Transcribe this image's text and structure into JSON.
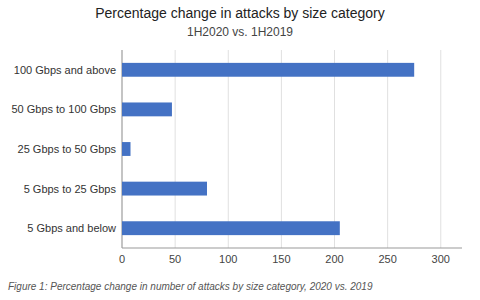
{
  "chart_data": {
    "type": "bar",
    "orientation": "horizontal",
    "title": "Percentage change in attacks by size category",
    "subtitle": "1H2020 vs. 1H2019",
    "caption": "Figure 1: Percentage change in number of attacks by size category, 2020 vs. 2019",
    "categories": [
      "5 Gbps and below",
      "5 Gbps to 25 Gbps",
      "25 Gbps to 50 Gbps",
      "50 Gbps to 100 Gbps",
      "100 Gbps and above"
    ],
    "values": [
      205,
      80,
      8,
      47,
      275
    ],
    "color": "#4472C4",
    "xlim": [
      0,
      320
    ],
    "xticks": [
      0,
      50,
      100,
      150,
      200,
      250,
      300
    ],
    "grid": true
  }
}
